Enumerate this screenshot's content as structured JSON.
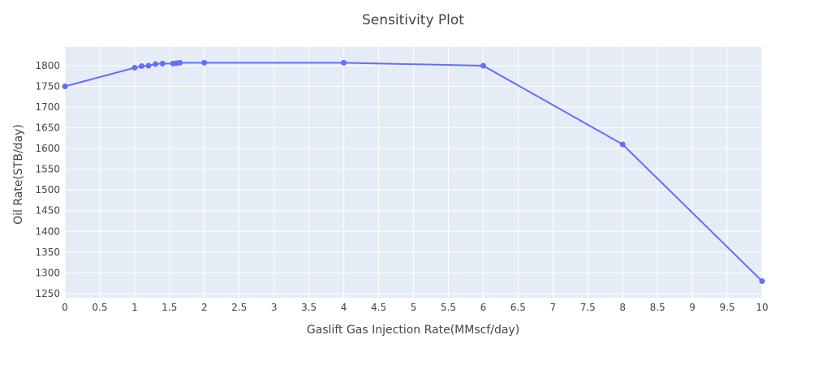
{
  "chart_data": {
    "type": "line",
    "title": "Sensitivity Plot",
    "xlabel": "Gaslift Gas Injection Rate(MMscf/day)",
    "ylabel": "Oil Rate(STB/day)",
    "xlim": [
      0,
      10
    ],
    "ylim": [
      1240,
      1845
    ],
    "xticks": [
      "0",
      "0.5",
      "1",
      "1.5",
      "2",
      "2.5",
      "3",
      "3.5",
      "4",
      "4.5",
      "5",
      "5.5",
      "6",
      "6.5",
      "7",
      "7.5",
      "8",
      "8.5",
      "9",
      "9.5",
      "10"
    ],
    "yticks": [
      "1250",
      "1300",
      "1350",
      "1400",
      "1450",
      "1500",
      "1550",
      "1600",
      "1650",
      "1700",
      "1750",
      "1800"
    ],
    "grid": true,
    "line_color": "#636efa",
    "plot_bg": "#e5ecf6",
    "series": [
      {
        "x": [
          0,
          1,
          1.1,
          1.2,
          1.3,
          1.4,
          1.55,
          1.6,
          1.65,
          2,
          4,
          6,
          8,
          10
        ],
        "y": [
          1750,
          1795,
          1799,
          1800,
          1804,
          1805,
          1805,
          1806,
          1807,
          1807,
          1807,
          1800,
          1610,
          1280
        ]
      }
    ]
  }
}
